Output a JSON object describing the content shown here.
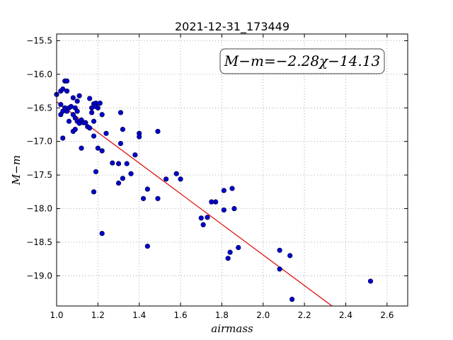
{
  "chart_data": {
    "type": "scatter",
    "title": "2021-12-31_173449",
    "xlabel": "airmass",
    "ylabel": "M−m",
    "xlim": [
      1.0,
      2.7
    ],
    "ylim": [
      -19.45,
      -15.4
    ],
    "y_inverted": true,
    "grid": true,
    "x_ticks": [
      1.0,
      1.2,
      1.4,
      1.6,
      1.8,
      2.0,
      2.2,
      2.4,
      2.6
    ],
    "x_tick_labels": [
      "1.0",
      "1.2",
      "1.4",
      "1.6",
      "1.8",
      "2.0",
      "2.2",
      "2.4",
      "2.6"
    ],
    "y_ticks": [
      -15.5,
      -16.0,
      -16.5,
      -17.0,
      -17.5,
      -18.0,
      -18.5,
      -19.0
    ],
    "y_tick_labels": [
      "−15.5",
      "−16.0",
      "−16.5",
      "−17.0",
      "−17.5",
      "−18.0",
      "−18.5",
      "−19.0"
    ],
    "fit_label": "M−m=−2.28χ−14.13",
    "fit": {
      "slope": -2.28,
      "intercept": -14.13
    },
    "colors": {
      "points": "#0000cc",
      "fit_line": "#dd0000",
      "grid": "#999999"
    },
    "series": [
      {
        "points": [
          [
            1.0,
            -16.3
          ],
          [
            1.02,
            -16.25
          ],
          [
            1.02,
            -16.45
          ],
          [
            1.02,
            -16.6
          ],
          [
            1.03,
            -16.22
          ],
          [
            1.03,
            -16.55
          ],
          [
            1.04,
            -16.1
          ],
          [
            1.04,
            -16.5
          ],
          [
            1.05,
            -16.1
          ],
          [
            1.05,
            -16.55
          ],
          [
            1.05,
            -16.25
          ],
          [
            1.03,
            -16.95
          ],
          [
            1.06,
            -16.5
          ],
          [
            1.06,
            -16.7
          ],
          [
            1.07,
            -16.48
          ],
          [
            1.08,
            -16.35
          ],
          [
            1.08,
            -16.6
          ],
          [
            1.08,
            -16.85
          ],
          [
            1.09,
            -16.5
          ],
          [
            1.09,
            -16.82
          ],
          [
            1.09,
            -16.65
          ],
          [
            1.1,
            -16.4
          ],
          [
            1.1,
            -16.55
          ],
          [
            1.1,
            -16.7
          ],
          [
            1.11,
            -16.32
          ],
          [
            1.11,
            -16.73
          ],
          [
            1.12,
            -16.68
          ],
          [
            1.12,
            -17.1
          ],
          [
            1.13,
            -16.72
          ],
          [
            1.14,
            -16.72
          ],
          [
            1.15,
            -16.78
          ],
          [
            1.16,
            -16.8
          ],
          [
            1.16,
            -16.36
          ],
          [
            1.17,
            -16.5
          ],
          [
            1.17,
            -16.57
          ],
          [
            1.18,
            -16.44
          ],
          [
            1.18,
            -16.7
          ],
          [
            1.18,
            -16.92
          ],
          [
            1.19,
            -16.43
          ],
          [
            1.19,
            -16.48
          ],
          [
            1.2,
            -16.5
          ],
          [
            1.2,
            -17.1
          ],
          [
            1.21,
            -16.43
          ],
          [
            1.22,
            -16.6
          ],
          [
            1.22,
            -17.14
          ],
          [
            1.18,
            -17.75
          ],
          [
            1.19,
            -17.45
          ],
          [
            1.22,
            -18.37
          ],
          [
            1.24,
            -16.88
          ],
          [
            1.27,
            -17.32
          ],
          [
            1.3,
            -17.33
          ],
          [
            1.3,
            -17.62
          ],
          [
            1.31,
            -16.57
          ],
          [
            1.31,
            -17.03
          ],
          [
            1.32,
            -16.82
          ],
          [
            1.32,
            -17.55
          ],
          [
            1.34,
            -17.33
          ],
          [
            1.36,
            -17.48
          ],
          [
            1.38,
            -17.2
          ],
          [
            1.4,
            -16.88
          ],
          [
            1.4,
            -16.93
          ],
          [
            1.42,
            -17.85
          ],
          [
            1.44,
            -17.71
          ],
          [
            1.44,
            -18.56
          ],
          [
            1.49,
            -16.85
          ],
          [
            1.49,
            -17.85
          ],
          [
            1.53,
            -17.56
          ],
          [
            1.58,
            -17.48
          ],
          [
            1.6,
            -17.56
          ],
          [
            1.7,
            -18.14
          ],
          [
            1.71,
            -18.24
          ],
          [
            1.73,
            -18.13
          ],
          [
            1.75,
            -17.9
          ],
          [
            1.77,
            -17.9
          ],
          [
            1.81,
            -18.02
          ],
          [
            1.81,
            -17.73
          ],
          [
            1.83,
            -18.74
          ],
          [
            1.84,
            -18.65
          ],
          [
            1.85,
            -17.7
          ],
          [
            1.86,
            -18.0
          ],
          [
            1.88,
            -18.58
          ],
          [
            2.08,
            -18.62
          ],
          [
            2.08,
            -18.9
          ],
          [
            2.13,
            -18.7
          ],
          [
            2.14,
            -19.35
          ],
          [
            2.52,
            -19.08
          ]
        ]
      }
    ]
  }
}
